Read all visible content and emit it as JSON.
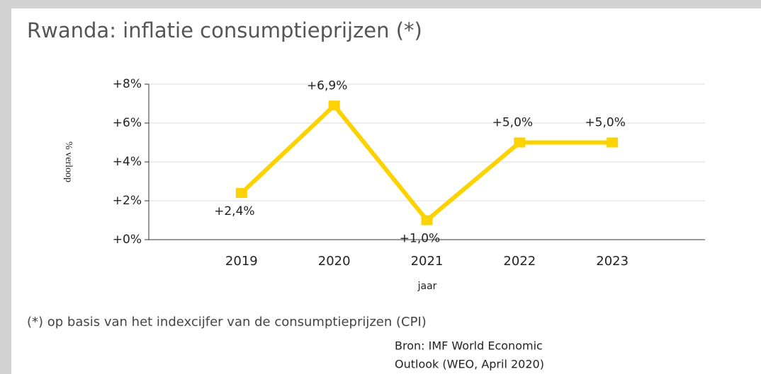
{
  "chart_data": {
    "type": "line",
    "title": "Rwanda: inflatie consumptieprijzen (*)",
    "y_label": "% verloop",
    "x_label": "jaar",
    "categories": [
      "2019",
      "2020",
      "2021",
      "2022",
      "2023"
    ],
    "series": [
      {
        "name": "inflatie",
        "color": "#fcd200",
        "values": [
          2.4,
          6.9,
          1.0,
          5.0,
          5.0
        ],
        "value_labels": [
          "+2,4%",
          "+6,9%",
          "+1,0%",
          "+5,0%",
          "+5,0%"
        ]
      }
    ],
    "ylim": [
      0,
      8
    ],
    "yticks": [
      {
        "value": 0,
        "label": "+0%"
      },
      {
        "value": 2,
        "label": "+2%"
      },
      {
        "value": 4,
        "label": "+4%"
      },
      {
        "value": 6,
        "label": "+6%"
      },
      {
        "value": 8,
        "label": "+8%"
      }
    ],
    "grid": true,
    "footnote": "(*) op basis van het indexcijfer van de consumptieprijzen (CPI)",
    "source": [
      "Bron: IMF World Economic",
      "Outlook (WEO, April 2020)"
    ]
  }
}
